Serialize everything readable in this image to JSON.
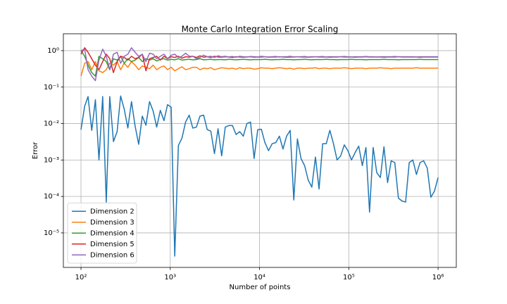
{
  "chart_data": {
    "type": "line",
    "title": "Monte Carlo Integration Error Scaling",
    "x_label": "Number of points",
    "y_label": "Error",
    "x": [
      100,
      110,
      120,
      132,
      145,
      159,
      175,
      192,
      210,
      231,
      254,
      278,
      305,
      335,
      368,
      404,
      443,
      486,
      534,
      586,
      643,
      705,
      774,
      850,
      933,
      1024,
      1123,
      1233,
      1353,
      1485,
      1630,
      1789,
      1963,
      2154,
      2364,
      2595,
      2848,
      3126,
      3430,
      3765,
      4132,
      4535,
      4977,
      5462,
      5995,
      6579,
      7221,
      7925,
      8697,
      9545,
      10476,
      11498,
      12619,
      13849,
      15199,
      16681,
      18307,
      20092,
      22051,
      24201,
      26561,
      29151,
      31993,
      35112,
      38535,
      42292,
      46416,
      50941,
      55908,
      61359,
      67342,
      73907,
      81113,
      89022,
      97701,
      107227,
      117681,
      129155,
      141747,
      155568,
      170735,
      187382,
      205651,
      225702,
      247708,
      271858,
      298365,
      327455,
      359381,
      394420,
      432876,
      475081,
      521400,
      572237,
      628029,
      689261,
      756463,
      830218,
      911163,
      1000000
    ],
    "series": [
      {
        "name": "Dimension 2",
        "color": "#1f77b4",
        "values": [
          0.0068,
          0.03,
          0.055,
          0.0065,
          0.045,
          0.001,
          0.055,
          7e-05,
          0.055,
          0.0032,
          0.006,
          0.057,
          0.025,
          0.0075,
          0.04,
          0.0085,
          0.0027,
          0.016,
          0.009,
          0.04,
          0.022,
          0.008,
          0.023,
          0.012,
          0.033,
          0.028,
          2.3e-06,
          0.0025,
          0.004,
          0.011,
          0.017,
          0.0075,
          0.008,
          0.016,
          0.017,
          0.0068,
          0.0062,
          0.0015,
          0.0072,
          0.0013,
          0.008,
          0.0088,
          0.0088,
          0.005,
          0.006,
          0.0045,
          0.01,
          0.011,
          0.0011,
          0.0068,
          0.007,
          0.003,
          0.0018,
          0.0028,
          0.003,
          0.0045,
          0.002,
          0.0045,
          0.0065,
          8e-05,
          0.0038,
          0.0011,
          0.0007,
          0.00028,
          0.00018,
          0.0012,
          0.00016,
          0.0028,
          0.0028,
          0.0065,
          0.0028,
          0.001,
          0.0013,
          0.0026,
          0.0018,
          0.001,
          0.0016,
          0.0024,
          0.0007,
          0.0022,
          3.7e-05,
          0.0022,
          0.00045,
          0.00033,
          0.0023,
          0.00024,
          0.00095,
          0.00085,
          9e-05,
          7.5e-05,
          7e-05,
          0.00085,
          0.001,
          0.0004,
          0.00085,
          0.00095,
          0.0006,
          9.5e-05,
          0.00014,
          0.00033
        ]
      },
      {
        "name": "Dimension 3",
        "color": "#ff7f0e",
        "values": [
          0.2,
          0.45,
          0.5,
          0.3,
          0.5,
          0.28,
          0.25,
          0.3,
          0.45,
          0.4,
          0.5,
          0.3,
          0.45,
          0.35,
          0.5,
          0.4,
          0.3,
          0.38,
          0.35,
          0.32,
          0.4,
          0.3,
          0.35,
          0.38,
          0.3,
          0.35,
          0.28,
          0.32,
          0.36,
          0.3,
          0.32,
          0.35,
          0.35,
          0.3,
          0.33,
          0.32,
          0.34,
          0.3,
          0.32,
          0.34,
          0.33,
          0.32,
          0.33,
          0.31,
          0.34,
          0.32,
          0.33,
          0.33,
          0.31,
          0.32,
          0.34,
          0.33,
          0.33,
          0.32,
          0.33,
          0.34,
          0.33,
          0.32,
          0.33,
          0.31,
          0.33,
          0.33,
          0.32,
          0.33,
          0.33,
          0.34,
          0.32,
          0.33,
          0.33,
          0.32,
          0.33,
          0.33,
          0.33,
          0.34,
          0.33,
          0.32,
          0.33,
          0.33,
          0.33,
          0.32,
          0.33,
          0.33,
          0.33,
          0.34,
          0.33,
          0.33,
          0.32,
          0.33,
          0.33,
          0.33,
          0.33,
          0.33,
          0.33,
          0.34,
          0.33,
          0.33,
          0.33,
          0.33,
          0.33,
          0.33
        ]
      },
      {
        "name": "Dimension 4",
        "color": "#2ca02c",
        "values": [
          1.0,
          0.7,
          0.4,
          0.25,
          0.2,
          0.7,
          0.6,
          0.5,
          0.3,
          0.6,
          0.55,
          0.7,
          0.45,
          0.6,
          0.5,
          0.55,
          0.65,
          0.5,
          0.6,
          0.55,
          0.6,
          0.52,
          0.58,
          0.6,
          0.55,
          0.58,
          0.56,
          0.6,
          0.55,
          0.57,
          0.58,
          0.56,
          0.57,
          0.6,
          0.56,
          0.57,
          0.58,
          0.56,
          0.57,
          0.57,
          0.56,
          0.58,
          0.57,
          0.56,
          0.57,
          0.58,
          0.57,
          0.56,
          0.57,
          0.57,
          0.57,
          0.58,
          0.57,
          0.56,
          0.57,
          0.57,
          0.58,
          0.57,
          0.57,
          0.56,
          0.57,
          0.57,
          0.58,
          0.57,
          0.56,
          0.57,
          0.57,
          0.57,
          0.58,
          0.57,
          0.57,
          0.56,
          0.57,
          0.57,
          0.57,
          0.58,
          0.57,
          0.57,
          0.57,
          0.56,
          0.57,
          0.57,
          0.57,
          0.57,
          0.58,
          0.57,
          0.57,
          0.57,
          0.56,
          0.57,
          0.57,
          0.57,
          0.57,
          0.57,
          0.58,
          0.57,
          0.57,
          0.57,
          0.57,
          0.57
        ]
      },
      {
        "name": "Dimension 5",
        "color": "#d62728",
        "values": [
          0.8,
          1.2,
          0.9,
          0.6,
          0.4,
          0.3,
          0.5,
          0.8,
          0.6,
          0.25,
          0.5,
          0.7,
          0.65,
          0.55,
          0.7,
          0.6,
          0.65,
          0.8,
          0.28,
          0.6,
          0.65,
          0.7,
          0.55,
          0.7,
          0.6,
          0.68,
          0.65,
          0.7,
          0.62,
          0.68,
          0.66,
          0.7,
          0.65,
          0.72,
          0.66,
          0.68,
          0.65,
          0.7,
          0.67,
          0.66,
          0.68,
          0.67,
          0.65,
          0.68,
          0.67,
          0.66,
          0.67,
          0.68,
          0.66,
          0.67,
          0.67,
          0.68,
          0.66,
          0.67,
          0.67,
          0.68,
          0.67,
          0.66,
          0.67,
          0.67,
          0.68,
          0.67,
          0.67,
          0.66,
          0.67,
          0.68,
          0.67,
          0.67,
          0.67,
          0.66,
          0.67,
          0.67,
          0.68,
          0.67,
          0.67,
          0.67,
          0.66,
          0.67,
          0.67,
          0.68,
          0.67,
          0.67,
          0.67,
          0.67,
          0.66,
          0.67,
          0.67,
          0.67,
          0.68,
          0.67,
          0.67,
          0.67,
          0.67,
          0.67,
          0.66,
          0.67,
          0.67,
          0.67,
          0.67,
          0.67
        ]
      },
      {
        "name": "Dimension 6",
        "color": "#9467bd",
        "values": [
          1.0,
          1.1,
          0.3,
          0.2,
          0.15,
          0.55,
          1.1,
          0.7,
          0.3,
          0.8,
          0.9,
          0.45,
          0.7,
          0.8,
          1.2,
          0.9,
          0.7,
          0.8,
          0.5,
          0.85,
          0.8,
          0.6,
          0.7,
          0.8,
          0.6,
          0.75,
          0.8,
          0.65,
          0.7,
          0.85,
          0.7,
          0.7,
          0.6,
          0.65,
          0.75,
          0.68,
          0.7,
          0.65,
          0.72,
          0.68,
          0.7,
          0.67,
          0.69,
          0.66,
          0.7,
          0.68,
          0.67,
          0.69,
          0.68,
          0.67,
          0.7,
          0.68,
          0.67,
          0.68,
          0.69,
          0.67,
          0.68,
          0.68,
          0.7,
          0.67,
          0.68,
          0.68,
          0.69,
          0.67,
          0.68,
          0.68,
          0.68,
          0.69,
          0.67,
          0.68,
          0.68,
          0.68,
          0.68,
          0.69,
          0.68,
          0.67,
          0.68,
          0.68,
          0.68,
          0.69,
          0.68,
          0.68,
          0.67,
          0.68,
          0.68,
          0.68,
          0.68,
          0.69,
          0.68,
          0.68,
          0.68,
          0.68,
          0.68,
          0.67,
          0.68,
          0.68,
          0.68,
          0.68,
          0.68,
          0.68
        ]
      }
    ],
    "log_x": true,
    "log_y": true,
    "grid": true,
    "legend": "lower left",
    "xlim": [
      63.5,
      1600000
    ],
    "ylim": [
      1.13e-06,
      2.9
    ],
    "xticks": [
      {
        "value": 100,
        "label": "10²"
      },
      {
        "value": 1000,
        "label": "10³"
      },
      {
        "value": 10000,
        "label": "10⁴"
      },
      {
        "value": 100000,
        "label": "10⁵"
      },
      {
        "value": 1000000,
        "label": "10⁶"
      }
    ],
    "yticks": [
      {
        "value": 1e-05,
        "label": "10⁻⁵"
      },
      {
        "value": 0.0001,
        "label": "10⁻⁴"
      },
      {
        "value": 0.001,
        "label": "10⁻³"
      },
      {
        "value": 0.01,
        "label": "10⁻²"
      },
      {
        "value": 0.1,
        "label": "10⁻¹"
      },
      {
        "value": 1,
        "label": "10⁰"
      }
    ]
  }
}
